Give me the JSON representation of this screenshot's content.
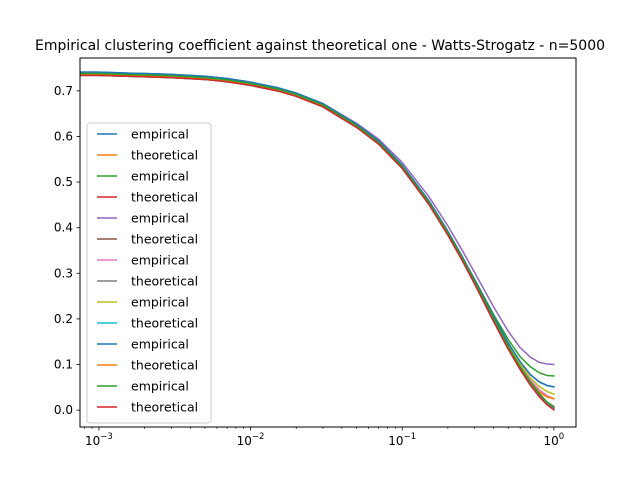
{
  "chart_data": {
    "type": "line",
    "title": "Empirical clustering coefficient against theoretical one - Watts-Strogatz - n=5000",
    "xlabel": "",
    "ylabel": "",
    "xscale": "log",
    "xlim": [
      0.00075,
      1.4
    ],
    "ylim": [
      -0.037,
      0.772
    ],
    "grid": false,
    "legend_position": "center-left",
    "x_ticks": [
      {
        "value": 0.001,
        "base": "10",
        "exp": "−3"
      },
      {
        "value": 0.01,
        "base": "10",
        "exp": "−2"
      },
      {
        "value": 0.1,
        "base": "10",
        "exp": "−1"
      },
      {
        "value": 1,
        "base": "10",
        "exp": "0"
      }
    ],
    "y_ticks": [
      {
        "value": 0.0,
        "label": "0.0"
      },
      {
        "value": 0.1,
        "label": "0.1"
      },
      {
        "value": 0.2,
        "label": "0.2"
      },
      {
        "value": 0.3,
        "label": "0.3"
      },
      {
        "value": 0.4,
        "label": "0.4"
      },
      {
        "value": 0.5,
        "label": "0.5"
      },
      {
        "value": 0.6,
        "label": "0.6"
      },
      {
        "value": 0.7,
        "label": "0.7"
      }
    ],
    "x": [
      0.00075,
      0.001,
      0.0015,
      0.002,
      0.003,
      0.005,
      0.007,
      0.01,
      0.015,
      0.02,
      0.03,
      0.05,
      0.07,
      0.1,
      0.15,
      0.2,
      0.25,
      0.3,
      0.4,
      0.5,
      0.6,
      0.7,
      0.8,
      0.9,
      1.0
    ],
    "series": [
      {
        "name": "empirical",
        "color": "#1f77b4",
        "values": [
          0.741,
          0.741,
          0.739,
          0.738,
          0.736,
          0.732,
          0.727,
          0.719,
          0.707,
          0.695,
          0.672,
          0.627,
          0.59,
          0.537,
          0.459,
          0.392,
          0.335,
          0.286,
          0.206,
          0.147,
          0.106,
          0.078,
          0.062,
          0.054,
          0.051
        ]
      },
      {
        "name": "theoretical",
        "color": "#ff7f0e",
        "values": [
          0.736,
          0.736,
          0.734,
          0.733,
          0.731,
          0.727,
          0.722,
          0.714,
          0.702,
          0.69,
          0.667,
          0.622,
          0.585,
          0.532,
          0.453,
          0.386,
          0.329,
          0.279,
          0.198,
          0.138,
          0.094,
          0.062,
          0.04,
          0.029,
          0.025
        ]
      },
      {
        "name": "empirical",
        "color": "#2ca02c",
        "values": [
          0.738,
          0.738,
          0.736,
          0.735,
          0.733,
          0.729,
          0.724,
          0.716,
          0.704,
          0.692,
          0.669,
          0.624,
          0.587,
          0.534,
          0.457,
          0.391,
          0.335,
          0.287,
          0.21,
          0.155,
          0.117,
          0.095,
          0.082,
          0.076,
          0.075
        ]
      },
      {
        "name": "theoretical",
        "color": "#d62728",
        "values": [
          0.734,
          0.734,
          0.732,
          0.731,
          0.729,
          0.725,
          0.72,
          0.712,
          0.7,
          0.688,
          0.665,
          0.62,
          0.583,
          0.53,
          0.451,
          0.384,
          0.327,
          0.277,
          0.195,
          0.134,
          0.089,
          0.055,
          0.03,
          0.012,
          0.001
        ]
      },
      {
        "name": "empirical",
        "color": "#9467bd",
        "values": [
          0.74,
          0.74,
          0.738,
          0.737,
          0.735,
          0.731,
          0.726,
          0.718,
          0.706,
          0.694,
          0.672,
          0.629,
          0.594,
          0.543,
          0.468,
          0.404,
          0.349,
          0.302,
          0.227,
          0.173,
          0.137,
          0.116,
          0.105,
          0.101,
          0.1
        ]
      },
      {
        "name": "theoretical",
        "color": "#8c564b",
        "values": [
          0.735,
          0.735,
          0.733,
          0.732,
          0.73,
          0.726,
          0.721,
          0.713,
          0.701,
          0.689,
          0.666,
          0.621,
          0.584,
          0.531,
          0.452,
          0.385,
          0.328,
          0.278,
          0.196,
          0.135,
          0.09,
          0.057,
          0.033,
          0.016,
          0.005
        ]
      },
      {
        "name": "empirical",
        "color": "#e377c2",
        "values": [
          0.737,
          0.737,
          0.735,
          0.734,
          0.732,
          0.728,
          0.723,
          0.715,
          0.703,
          0.691,
          0.668,
          0.623,
          0.586,
          0.533,
          0.455,
          0.388,
          0.331,
          0.282,
          0.201,
          0.141,
          0.097,
          0.066,
          0.045,
          0.032,
          0.025
        ]
      },
      {
        "name": "theoretical",
        "color": "#7f7f7f",
        "values": [
          0.734,
          0.734,
          0.732,
          0.731,
          0.729,
          0.725,
          0.72,
          0.712,
          0.7,
          0.688,
          0.665,
          0.62,
          0.583,
          0.53,
          0.451,
          0.384,
          0.327,
          0.277,
          0.195,
          0.134,
          0.089,
          0.056,
          0.031,
          0.014,
          0.003
        ]
      },
      {
        "name": "empirical",
        "color": "#bcbd22",
        "values": [
          0.737,
          0.737,
          0.735,
          0.734,
          0.732,
          0.728,
          0.723,
          0.715,
          0.703,
          0.691,
          0.668,
          0.623,
          0.586,
          0.533,
          0.455,
          0.389,
          0.332,
          0.283,
          0.203,
          0.144,
          0.101,
          0.071,
          0.052,
          0.041,
          0.035
        ]
      },
      {
        "name": "theoretical",
        "color": "#17becf",
        "values": [
          0.734,
          0.734,
          0.732,
          0.731,
          0.729,
          0.725,
          0.72,
          0.712,
          0.7,
          0.688,
          0.665,
          0.62,
          0.583,
          0.53,
          0.451,
          0.384,
          0.327,
          0.277,
          0.195,
          0.134,
          0.089,
          0.055,
          0.03,
          0.013,
          0.002
        ]
      },
      {
        "name": "empirical",
        "color": "#1f77b4",
        "values": [
          0.741,
          0.741,
          0.739,
          0.738,
          0.736,
          0.732,
          0.727,
          0.719,
          0.707,
          0.695,
          0.672,
          0.627,
          0.59,
          0.537,
          0.459,
          0.392,
          0.335,
          0.286,
          0.206,
          0.147,
          0.106,
          0.078,
          0.062,
          0.054,
          0.051
        ]
      },
      {
        "name": "theoretical",
        "color": "#ff7f0e",
        "values": [
          0.736,
          0.736,
          0.734,
          0.733,
          0.731,
          0.727,
          0.722,
          0.714,
          0.702,
          0.69,
          0.667,
          0.622,
          0.585,
          0.532,
          0.453,
          0.386,
          0.329,
          0.279,
          0.198,
          0.138,
          0.094,
          0.062,
          0.04,
          0.029,
          0.025
        ]
      },
      {
        "name": "empirical",
        "color": "#2ca02c",
        "values": [
          0.738,
          0.738,
          0.736,
          0.735,
          0.733,
          0.729,
          0.724,
          0.716,
          0.704,
          0.692,
          0.669,
          0.624,
          0.587,
          0.534,
          0.456,
          0.389,
          0.332,
          0.283,
          0.201,
          0.14,
          0.095,
          0.062,
          0.037,
          0.018,
          0.008
        ]
      },
      {
        "name": "theoretical",
        "color": "#d62728",
        "values": [
          0.734,
          0.734,
          0.732,
          0.731,
          0.729,
          0.725,
          0.72,
          0.712,
          0.7,
          0.688,
          0.665,
          0.62,
          0.583,
          0.53,
          0.451,
          0.384,
          0.327,
          0.277,
          0.195,
          0.134,
          0.089,
          0.055,
          0.03,
          0.012,
          0.001
        ]
      }
    ]
  }
}
